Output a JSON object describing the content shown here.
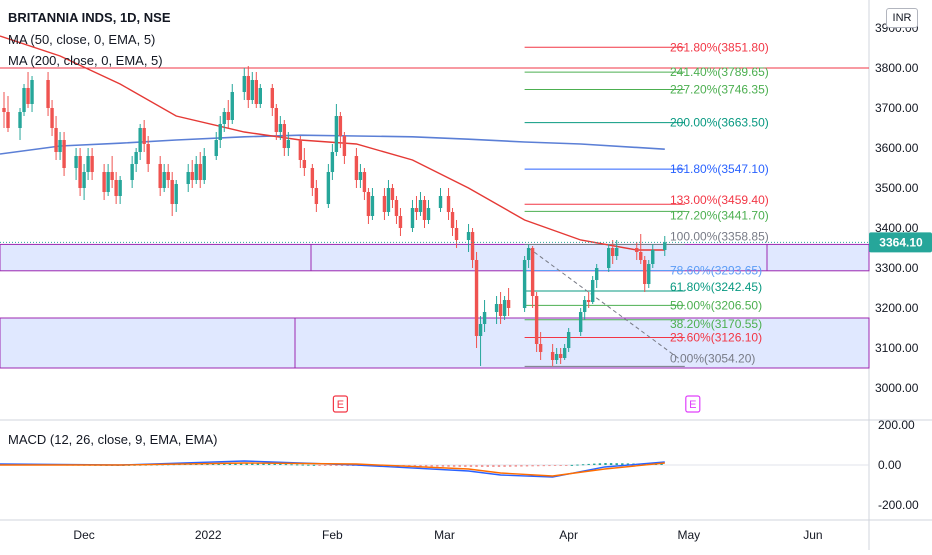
{
  "header": {
    "title": "BRITANNIA INDS, 1D, NSE",
    "ma50_label": "MA (50, close, 0, EMA, 5)",
    "ma200_label": "MA (200, close, 0, EMA, 5)",
    "macd_label": "MACD (12, 26, close, 9, EMA, EMA)",
    "currency_badge": "INR"
  },
  "colors": {
    "up": "#26a69a",
    "down": "#ef5350",
    "ma50": "#e53935",
    "ma200": "#5b7fd6",
    "macd_line": "#2962ff",
    "signal_line": "#ff6d00",
    "zone_fill": "#d6e0ff",
    "zone_border": "#9c27b0",
    "price_tag": "#26a69a"
  },
  "price_axis": {
    "ticks": [
      "3800.00",
      "3700.00",
      "3600.00",
      "3500.00",
      "3400.00",
      "3300.00",
      "3200.00",
      "3100.00",
      "3000.00"
    ],
    "top_tick": "3900.00",
    "last_price": "3364.10"
  },
  "macd_axis": {
    "ticks": [
      "200.00",
      "0.00",
      "-200.00"
    ]
  },
  "time_axis": {
    "labels": [
      "Dec",
      "2022",
      "Feb",
      "Mar",
      "Apr",
      "May",
      "Jun"
    ]
  },
  "fib_levels": [
    {
      "label": "261.80%(3851.80)",
      "color": "#f23645"
    },
    {
      "label": "241.40%(3789.65)",
      "color": "#4caf50"
    },
    {
      "label": "227.20%(3746.35)",
      "color": "#4caf50"
    },
    {
      "label": "200.00%(3663.50)",
      "color": "#089981"
    },
    {
      "label": "161.80%(3547.10)",
      "color": "#2962ff"
    },
    {
      "label": "133.00%(3459.40)",
      "color": "#f23645"
    },
    {
      "label": "127.20%(3441.70)",
      "color": "#4caf50"
    },
    {
      "label": "100.00%(3358.85)",
      "color": "#787b86"
    },
    {
      "label": "78.60%(3293.65)",
      "color": "#5b9cf6"
    },
    {
      "label": "61.80%(3242.45)",
      "color": "#089981"
    },
    {
      "label": "50.00%(3206.50)",
      "color": "#4caf50"
    },
    {
      "label": "38.20%(3170.55)",
      "color": "#4caf50"
    },
    {
      "label": "23.60%(3126.10)",
      "color": "#f23645"
    },
    {
      "label": "0.00%(3054.20)",
      "color": "#787b86"
    }
  ],
  "earnings_markers": [
    "E",
    "E"
  ],
  "chart_data": {
    "type": "candlestick",
    "title": "BRITANNIA INDS, 1D, NSE",
    "x_range": [
      "2021-11-10",
      "2022-06-15"
    ],
    "ylim": [
      2955,
      3925
    ],
    "candles": [
      {
        "d": "2021-11-11",
        "o": 3700,
        "h": 3740,
        "l": 3650,
        "c": 3690
      },
      {
        "d": "2021-11-12",
        "o": 3690,
        "h": 3730,
        "l": 3640,
        "c": 3650
      },
      {
        "d": "2021-11-15",
        "o": 3650,
        "h": 3700,
        "l": 3620,
        "c": 3690
      },
      {
        "d": "2021-11-16",
        "o": 3690,
        "h": 3760,
        "l": 3680,
        "c": 3750
      },
      {
        "d": "2021-11-17",
        "o": 3750,
        "h": 3790,
        "l": 3700,
        "c": 3710
      },
      {
        "d": "2021-11-18",
        "o": 3710,
        "h": 3780,
        "l": 3690,
        "c": 3770
      },
      {
        "d": "2021-11-22",
        "o": 3770,
        "h": 3790,
        "l": 3680,
        "c": 3700
      },
      {
        "d": "2021-11-23",
        "o": 3700,
        "h": 3720,
        "l": 3630,
        "c": 3650
      },
      {
        "d": "2021-11-24",
        "o": 3650,
        "h": 3680,
        "l": 3570,
        "c": 3590
      },
      {
        "d": "2021-11-25",
        "o": 3590,
        "h": 3640,
        "l": 3570,
        "c": 3620
      },
      {
        "d": "2021-11-26",
        "o": 3620,
        "h": 3640,
        "l": 3530,
        "c": 3550
      },
      {
        "d": "2021-11-29",
        "o": 3550,
        "h": 3600,
        "l": 3520,
        "c": 3580
      },
      {
        "d": "2021-11-30",
        "o": 3580,
        "h": 3600,
        "l": 3480,
        "c": 3500
      },
      {
        "d": "2021-12-01",
        "o": 3500,
        "h": 3560,
        "l": 3470,
        "c": 3540
      },
      {
        "d": "2021-12-02",
        "o": 3540,
        "h": 3600,
        "l": 3520,
        "c": 3580
      },
      {
        "d": "2021-12-03",
        "o": 3580,
        "h": 3600,
        "l": 3520,
        "c": 3540
      },
      {
        "d": "2021-12-06",
        "o": 3540,
        "h": 3560,
        "l": 3470,
        "c": 3490
      },
      {
        "d": "2021-12-07",
        "o": 3490,
        "h": 3560,
        "l": 3480,
        "c": 3540
      },
      {
        "d": "2021-12-08",
        "o": 3540,
        "h": 3580,
        "l": 3500,
        "c": 3520
      },
      {
        "d": "2021-12-09",
        "o": 3520,
        "h": 3540,
        "l": 3460,
        "c": 3480
      },
      {
        "d": "2021-12-10",
        "o": 3480,
        "h": 3530,
        "l": 3460,
        "c": 3520
      },
      {
        "d": "2021-12-13",
        "o": 3520,
        "h": 3580,
        "l": 3500,
        "c": 3560
      },
      {
        "d": "2021-12-14",
        "o": 3560,
        "h": 3600,
        "l": 3540,
        "c": 3590
      },
      {
        "d": "2021-12-15",
        "o": 3590,
        "h": 3660,
        "l": 3570,
        "c": 3650
      },
      {
        "d": "2021-12-16",
        "o": 3650,
        "h": 3670,
        "l": 3590,
        "c": 3610
      },
      {
        "d": "2021-12-17",
        "o": 3610,
        "h": 3630,
        "l": 3540,
        "c": 3560
      },
      {
        "d": "2021-12-20",
        "o": 3560,
        "h": 3580,
        "l": 3480,
        "c": 3500
      },
      {
        "d": "2021-12-21",
        "o": 3500,
        "h": 3560,
        "l": 3490,
        "c": 3540
      },
      {
        "d": "2021-12-22",
        "o": 3540,
        "h": 3560,
        "l": 3500,
        "c": 3520
      },
      {
        "d": "2021-12-23",
        "o": 3520,
        "h": 3540,
        "l": 3430,
        "c": 3460
      },
      {
        "d": "2021-12-24",
        "o": 3460,
        "h": 3520,
        "l": 3440,
        "c": 3510
      },
      {
        "d": "2021-12-27",
        "o": 3510,
        "h": 3560,
        "l": 3490,
        "c": 3540
      },
      {
        "d": "2021-12-28",
        "o": 3540,
        "h": 3570,
        "l": 3500,
        "c": 3520
      },
      {
        "d": "2021-12-29",
        "o": 3520,
        "h": 3580,
        "l": 3510,
        "c": 3560
      },
      {
        "d": "2021-12-30",
        "o": 3560,
        "h": 3590,
        "l": 3500,
        "c": 3520
      },
      {
        "d": "2021-12-31",
        "o": 3520,
        "h": 3600,
        "l": 3510,
        "c": 3580
      },
      {
        "d": "2022-01-03",
        "o": 3580,
        "h": 3640,
        "l": 3570,
        "c": 3620
      },
      {
        "d": "2022-01-04",
        "o": 3620,
        "h": 3680,
        "l": 3600,
        "c": 3660
      },
      {
        "d": "2022-01-05",
        "o": 3660,
        "h": 3700,
        "l": 3640,
        "c": 3690
      },
      {
        "d": "2022-01-06",
        "o": 3690,
        "h": 3720,
        "l": 3650,
        "c": 3670
      },
      {
        "d": "2022-01-07",
        "o": 3670,
        "h": 3760,
        "l": 3660,
        "c": 3740
      },
      {
        "d": "2022-01-10",
        "o": 3740,
        "h": 3800,
        "l": 3720,
        "c": 3780
      },
      {
        "d": "2022-01-11",
        "o": 3780,
        "h": 3805,
        "l": 3700,
        "c": 3720
      },
      {
        "d": "2022-01-12",
        "o": 3720,
        "h": 3790,
        "l": 3710,
        "c": 3770
      },
      {
        "d": "2022-01-13",
        "o": 3770,
        "h": 3790,
        "l": 3700,
        "c": 3710
      },
      {
        "d": "2022-01-14",
        "o": 3710,
        "h": 3760,
        "l": 3700,
        "c": 3750
      },
      {
        "d": "2022-01-17",
        "o": 3750,
        "h": 3760,
        "l": 3680,
        "c": 3700
      },
      {
        "d": "2022-01-18",
        "o": 3700,
        "h": 3710,
        "l": 3620,
        "c": 3640
      },
      {
        "d": "2022-01-19",
        "o": 3640,
        "h": 3680,
        "l": 3620,
        "c": 3660
      },
      {
        "d": "2022-01-20",
        "o": 3660,
        "h": 3670,
        "l": 3580,
        "c": 3600
      },
      {
        "d": "2022-01-21",
        "o": 3600,
        "h": 3640,
        "l": 3580,
        "c": 3620
      },
      {
        "d": "2022-01-24",
        "o": 3620,
        "h": 3630,
        "l": 3550,
        "c": 3570
      },
      {
        "d": "2022-01-25",
        "o": 3570,
        "h": 3600,
        "l": 3530,
        "c": 3550
      },
      {
        "d": "2022-01-27",
        "o": 3550,
        "h": 3560,
        "l": 3480,
        "c": 3500
      },
      {
        "d": "2022-01-28",
        "o": 3500,
        "h": 3520,
        "l": 3440,
        "c": 3460
      },
      {
        "d": "2022-01-31",
        "o": 3460,
        "h": 3560,
        "l": 3450,
        "c": 3540
      },
      {
        "d": "2022-02-01",
        "o": 3540,
        "h": 3610,
        "l": 3520,
        "c": 3590
      },
      {
        "d": "2022-02-02",
        "o": 3590,
        "h": 3710,
        "l": 3580,
        "c": 3680
      },
      {
        "d": "2022-02-03",
        "o": 3680,
        "h": 3690,
        "l": 3600,
        "c": 3630
      },
      {
        "d": "2022-02-04",
        "o": 3630,
        "h": 3640,
        "l": 3560,
        "c": 3580
      },
      {
        "d": "2022-02-07",
        "o": 3580,
        "h": 3600,
        "l": 3500,
        "c": 3520
      },
      {
        "d": "2022-02-08",
        "o": 3520,
        "h": 3560,
        "l": 3500,
        "c": 3540
      },
      {
        "d": "2022-02-09",
        "o": 3540,
        "h": 3550,
        "l": 3470,
        "c": 3490
      },
      {
        "d": "2022-02-10",
        "o": 3490,
        "h": 3500,
        "l": 3410,
        "c": 3430
      },
      {
        "d": "2022-02-11",
        "o": 3430,
        "h": 3500,
        "l": 3420,
        "c": 3480
      },
      {
        "d": "2022-02-14",
        "o": 3480,
        "h": 3500,
        "l": 3420,
        "c": 3440
      },
      {
        "d": "2022-02-15",
        "o": 3440,
        "h": 3520,
        "l": 3430,
        "c": 3500
      },
      {
        "d": "2022-02-16",
        "o": 3500,
        "h": 3510,
        "l": 3450,
        "c": 3470
      },
      {
        "d": "2022-02-17",
        "o": 3470,
        "h": 3480,
        "l": 3410,
        "c": 3430
      },
      {
        "d": "2022-02-18",
        "o": 3430,
        "h": 3450,
        "l": 3380,
        "c": 3400
      },
      {
        "d": "2022-02-21",
        "o": 3400,
        "h": 3470,
        "l": 3390,
        "c": 3450
      },
      {
        "d": "2022-02-22",
        "o": 3450,
        "h": 3480,
        "l": 3420,
        "c": 3440
      },
      {
        "d": "2022-02-23",
        "o": 3440,
        "h": 3490,
        "l": 3430,
        "c": 3470
      },
      {
        "d": "2022-02-24",
        "o": 3470,
        "h": 3480,
        "l": 3400,
        "c": 3420
      },
      {
        "d": "2022-02-25",
        "o": 3420,
        "h": 3470,
        "l": 3410,
        "c": 3450
      },
      {
        "d": "2022-02-28",
        "o": 3450,
        "h": 3500,
        "l": 3440,
        "c": 3480
      },
      {
        "d": "2022-03-02",
        "o": 3480,
        "h": 3500,
        "l": 3420,
        "c": 3440
      },
      {
        "d": "2022-03-03",
        "o": 3440,
        "h": 3450,
        "l": 3380,
        "c": 3400
      },
      {
        "d": "2022-03-04",
        "o": 3400,
        "h": 3420,
        "l": 3350,
        "c": 3370
      },
      {
        "d": "2022-03-07",
        "o": 3370,
        "h": 3410,
        "l": 3340,
        "c": 3390
      },
      {
        "d": "2022-03-08",
        "o": 3390,
        "h": 3400,
        "l": 3300,
        "c": 3320
      },
      {
        "d": "2022-03-09",
        "o": 3320,
        "h": 3340,
        "l": 3100,
        "c": 3130
      },
      {
        "d": "2022-03-10",
        "o": 3130,
        "h": 3180,
        "l": 3055,
        "c": 3160
      },
      {
        "d": "2022-03-11",
        "o": 3160,
        "h": 3220,
        "l": 3140,
        "c": 3190
      },
      {
        "d": "2022-03-14",
        "o": 3190,
        "h": 3230,
        "l": 3160,
        "c": 3210
      },
      {
        "d": "2022-03-15",
        "o": 3210,
        "h": 3240,
        "l": 3160,
        "c": 3180
      },
      {
        "d": "2022-03-16",
        "o": 3180,
        "h": 3230,
        "l": 3170,
        "c": 3220
      },
      {
        "d": "2022-03-17",
        "o": 3220,
        "h": 3250,
        "l": 3180,
        "c": 3200
      },
      {
        "d": "2022-03-21",
        "o": 3200,
        "h": 3330,
        "l": 3190,
        "c": 3320
      },
      {
        "d": "2022-03-22",
        "o": 3320,
        "h": 3359,
        "l": 3300,
        "c": 3350
      },
      {
        "d": "2022-03-23",
        "o": 3350,
        "h": 3355,
        "l": 3200,
        "c": 3230
      },
      {
        "d": "2022-03-24",
        "o": 3230,
        "h": 3240,
        "l": 3090,
        "c": 3110
      },
      {
        "d": "2022-03-25",
        "o": 3110,
        "h": 3140,
        "l": 3070,
        "c": 3090
      },
      {
        "d": "2022-03-28",
        "o": 3090,
        "h": 3110,
        "l": 3054,
        "c": 3070
      },
      {
        "d": "2022-03-29",
        "o": 3070,
        "h": 3100,
        "l": 3060,
        "c": 3085
      },
      {
        "d": "2022-03-30",
        "o": 3085,
        "h": 3100,
        "l": 3060,
        "c": 3075
      },
      {
        "d": "2022-03-31",
        "o": 3075,
        "h": 3110,
        "l": 3070,
        "c": 3100
      },
      {
        "d": "2022-04-01",
        "o": 3100,
        "h": 3150,
        "l": 3090,
        "c": 3140
      },
      {
        "d": "2022-04-04",
        "o": 3140,
        "h": 3200,
        "l": 3130,
        "c": 3190
      },
      {
        "d": "2022-04-05",
        "o": 3190,
        "h": 3230,
        "l": 3170,
        "c": 3220
      },
      {
        "d": "2022-04-06",
        "o": 3220,
        "h": 3240,
        "l": 3200,
        "c": 3215
      },
      {
        "d": "2022-04-07",
        "o": 3215,
        "h": 3280,
        "l": 3210,
        "c": 3270
      },
      {
        "d": "2022-04-08",
        "o": 3270,
        "h": 3310,
        "l": 3250,
        "c": 3300
      },
      {
        "d": "2022-04-11",
        "o": 3300,
        "h": 3360,
        "l": 3290,
        "c": 3350
      },
      {
        "d": "2022-04-12",
        "o": 3350,
        "h": 3370,
        "l": 3310,
        "c": 3330
      },
      {
        "d": "2022-04-13",
        "o": 3330,
        "h": 3370,
        "l": 3320,
        "c": 3350
      },
      {
        "d": "2022-04-18",
        "o": 3350,
        "h": 3365,
        "l": 3320,
        "c": 3340
      },
      {
        "d": "2022-04-19",
        "o": 3340,
        "h": 3385,
        "l": 3310,
        "c": 3320
      },
      {
        "d": "2022-04-20",
        "o": 3320,
        "h": 3330,
        "l": 3240,
        "c": 3260
      },
      {
        "d": "2022-04-21",
        "o": 3260,
        "h": 3320,
        "l": 3250,
        "c": 3310
      },
      {
        "d": "2022-04-22",
        "o": 3310,
        "h": 3360,
        "l": 3300,
        "c": 3345
      },
      {
        "d": "2022-04-25",
        "o": 3345,
        "h": 3380,
        "l": 3330,
        "c": 3364.1
      }
    ],
    "ma50": [
      {
        "d": "2021-11-10",
        "v": 3880
      },
      {
        "d": "2021-11-25",
        "v": 3830
      },
      {
        "d": "2021-12-10",
        "v": 3760
      },
      {
        "d": "2021-12-24",
        "v": 3680
      },
      {
        "d": "2022-01-10",
        "v": 3640
      },
      {
        "d": "2022-01-24",
        "v": 3620
      },
      {
        "d": "2022-02-07",
        "v": 3610
      },
      {
        "d": "2022-02-21",
        "v": 3570
      },
      {
        "d": "2022-03-07",
        "v": 3500
      },
      {
        "d": "2022-03-21",
        "v": 3420
      },
      {
        "d": "2022-04-04",
        "v": 3370
      },
      {
        "d": "2022-04-18",
        "v": 3345
      },
      {
        "d": "2022-04-25",
        "v": 3345
      }
    ],
    "ma200": [
      {
        "d": "2021-11-10",
        "v": 3585
      },
      {
        "d": "2021-11-25",
        "v": 3605
      },
      {
        "d": "2021-12-10",
        "v": 3612
      },
      {
        "d": "2021-12-24",
        "v": 3620
      },
      {
        "d": "2022-01-10",
        "v": 3628
      },
      {
        "d": "2022-01-24",
        "v": 3632
      },
      {
        "d": "2022-02-07",
        "v": 3630
      },
      {
        "d": "2022-02-21",
        "v": 3628
      },
      {
        "d": "2022-03-07",
        "v": 3622
      },
      {
        "d": "2022-03-21",
        "v": 3615
      },
      {
        "d": "2022-04-04",
        "v": 3610
      },
      {
        "d": "2022-04-25",
        "v": 3597
      }
    ],
    "fib": {
      "start_date": "2022-03-21",
      "end_date": "2022-04-30",
      "levels": [
        3851.8,
        3789.65,
        3746.35,
        3663.5,
        3547.1,
        3459.4,
        3441.7,
        3358.85,
        3293.65,
        3242.45,
        3206.5,
        3170.55,
        3126.1,
        3054.2
      ]
    },
    "horizontal_line": 3800,
    "zones": [
      {
        "top": 3359,
        "bottom": 3293
      },
      {
        "top": 3175,
        "bottom": 3050
      }
    ],
    "trend_line": {
      "start_date": "2022-03-22",
      "start": 3350,
      "end_date": "2022-04-29",
      "end": 3070
    },
    "earnings_dates": [
      "2022-02-03",
      "2022-05-02"
    ],
    "macd": {
      "ylim": [
        -260,
        250
      ],
      "x": [
        "2021-11-10",
        "2021-12-10",
        "2022-01-10",
        "2022-02-07",
        "2022-03-07",
        "2022-03-15",
        "2022-03-28",
        "2022-04-10",
        "2022-04-25"
      ],
      "macd": [
        5,
        0,
        20,
        0,
        -30,
        -50,
        -60,
        -10,
        15
      ],
      "signal": [
        0,
        0,
        10,
        5,
        -20,
        -40,
        -55,
        -20,
        10
      ],
      "hist": [
        5,
        0,
        10,
        -5,
        -10,
        -10,
        -5,
        10,
        5
      ]
    }
  }
}
